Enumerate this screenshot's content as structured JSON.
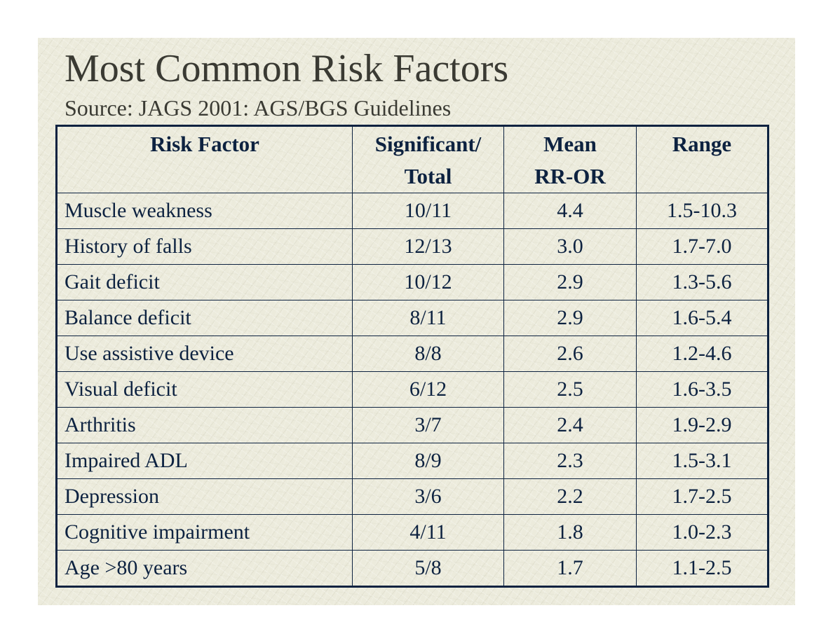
{
  "slide": {
    "title": "Most Common Risk Factors",
    "subtitle": "Source: JAGS 2001: AGS/BGS Guidelines"
  },
  "table": {
    "headers": {
      "risk_factor": "Risk Factor",
      "significant_line1": "Significant/",
      "significant_line2": "Total",
      "mean_line1": "Mean",
      "mean_line2": "RR-OR",
      "range": "Range"
    },
    "rows": [
      {
        "factor": "Muscle weakness",
        "significant": "10/11",
        "mean": "4.4",
        "range": "1.5-10.3"
      },
      {
        "factor": "History of falls",
        "significant": "12/13",
        "mean": "3.0",
        "range": "1.7-7.0"
      },
      {
        "factor": "Gait deficit",
        "significant": "10/12",
        "mean": "2.9",
        "range": "1.3-5.6"
      },
      {
        "factor": "Balance deficit",
        "significant": "8/11",
        "mean": "2.9",
        "range": "1.6-5.4"
      },
      {
        "factor": "Use assistive device",
        "significant": "8/8",
        "mean": "2.6",
        "range": "1.2-4.6"
      },
      {
        "factor": "Visual deficit",
        "significant": "6/12",
        "mean": "2.5",
        "range": "1.6-3.5"
      },
      {
        "factor": "Arthritis",
        "significant": "3/7",
        "mean": "2.4",
        "range": "1.9-2.9"
      },
      {
        "factor": "Impaired ADL",
        "significant": "8/9",
        "mean": "2.3",
        "range": "1.5-3.1"
      },
      {
        "factor": "Depression",
        "significant": "3/6",
        "mean": "2.2",
        "range": "1.7-2.5"
      },
      {
        "factor": "Cognitive impairment",
        "significant": "4/11",
        "mean": "1.8",
        "range": "1.0-2.3"
      },
      {
        "factor": "Age >80 years",
        "significant": "5/8",
        "mean": "1.7",
        "range": "1.1-2.5"
      }
    ]
  },
  "colors": {
    "table_text": "#0d2240",
    "title_text": "#3a3a33",
    "background": "#ecebdc"
  }
}
